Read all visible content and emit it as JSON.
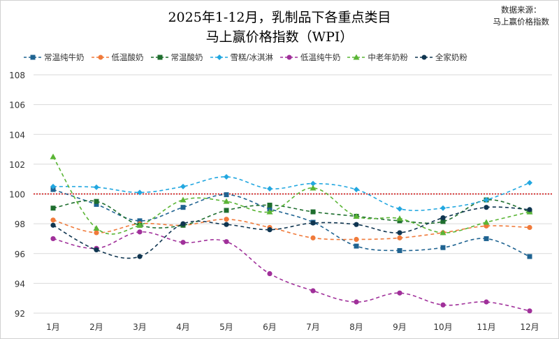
{
  "title_line1": "2025年1-12月，乳制品下各重点类目",
  "title_line2": "马上赢价格指数（WPI）",
  "source_line1": "数据来源：",
  "source_line2": "马上赢价格指数",
  "chart_data": {
    "type": "line",
    "categories": [
      "1月",
      "2月",
      "3月",
      "4月",
      "5月",
      "6月",
      "7月",
      "8月",
      "9月",
      "10月",
      "11月",
      "12月"
    ],
    "ylim": [
      92,
      108
    ],
    "yticks": [
      92,
      94,
      96,
      98,
      100,
      102,
      104,
      106,
      108
    ],
    "grid": "horizontal",
    "legend_position": "top",
    "reference_line": {
      "value": 100,
      "color": "#cc0000",
      "style": "dotted"
    },
    "series": [
      {
        "name": "常温纯牛奶",
        "color": "#1f6391",
        "marker": "square",
        "values": [
          100.3,
          99.3,
          98.2,
          99.1,
          99.95,
          99.0,
          98.1,
          96.5,
          96.2,
          96.4,
          97.0,
          95.8
        ]
      },
      {
        "name": "低温酸奶",
        "color": "#f07a3a",
        "marker": "circle",
        "values": [
          98.25,
          97.4,
          98.0,
          97.9,
          98.3,
          97.75,
          97.05,
          96.95,
          97.05,
          97.4,
          97.85,
          97.75
        ]
      },
      {
        "name": "常温酸奶",
        "color": "#1e6e2e",
        "marker": "square",
        "values": [
          99.05,
          99.5,
          97.9,
          97.9,
          98.9,
          99.25,
          98.8,
          98.5,
          98.2,
          98.15,
          99.6,
          98.8
        ]
      },
      {
        "name": "雪糕/冰淇淋",
        "color": "#22a7e0",
        "marker": "diamond",
        "values": [
          100.5,
          100.45,
          100.1,
          100.5,
          101.15,
          100.35,
          100.7,
          100.3,
          99.0,
          99.05,
          99.6,
          100.75
        ]
      },
      {
        "name": "低温纯牛奶",
        "color": "#a0309a",
        "marker": "circle",
        "values": [
          97.0,
          96.35,
          97.45,
          96.75,
          96.8,
          94.65,
          93.5,
          92.75,
          93.35,
          92.55,
          92.75,
          92.15
        ]
      },
      {
        "name": "中老年奶粉",
        "color": "#5ab535",
        "marker": "triangle",
        "values": [
          102.5,
          97.7,
          97.9,
          99.6,
          99.5,
          98.8,
          100.4,
          98.5,
          98.35,
          97.4,
          98.1,
          98.8
        ]
      },
      {
        "name": "全家奶粉",
        "color": "#0f3550",
        "marker": "circle",
        "values": [
          97.9,
          96.25,
          95.8,
          98.0,
          97.95,
          97.6,
          98.05,
          97.95,
          97.4,
          98.4,
          99.1,
          98.95
        ]
      }
    ]
  }
}
